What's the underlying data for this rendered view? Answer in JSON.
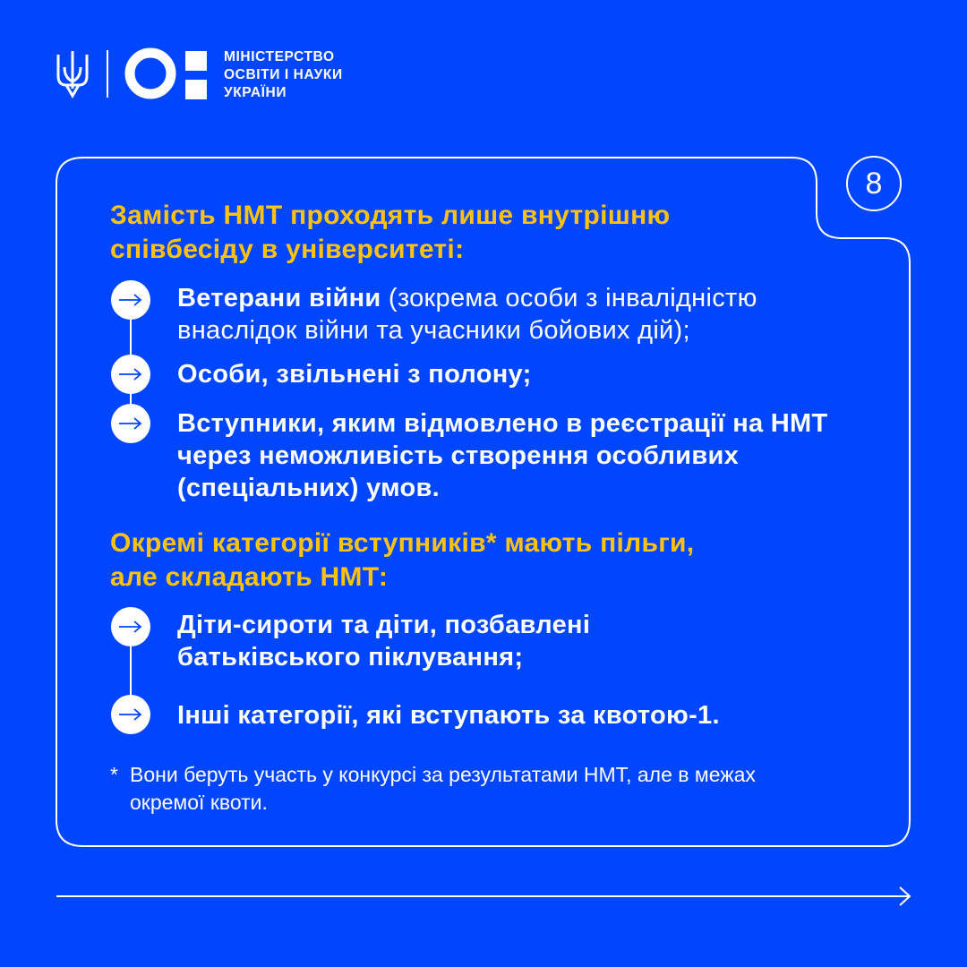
{
  "header": {
    "logo_text": [
      "МІНІСТЕРСТВО",
      "ОСВІТИ І НАУКИ",
      "УКРАЇНИ"
    ],
    "icons": [
      "trident-icon",
      "ministry-logo-icon"
    ]
  },
  "page_number": "8",
  "section1": {
    "heading": [
      "Замість НМТ проходять лише внутрішню",
      "співбесіду в університеті:"
    ],
    "items": [
      {
        "bold": "Ветерани війни",
        "rest": " (зокрема особи з інвалідністю",
        "line2": "внаслідок війни та учасники бойових дій);"
      },
      {
        "bold": "Особи, звільнені з полону;"
      },
      {
        "bold": "Вступники, яким відмовлено в реєстрації на НМТ",
        "line2": "через неможливість створення особливих",
        "line3": "(спеціальних) умов."
      }
    ]
  },
  "section2": {
    "heading": [
      "Окремі категорії вступників* мають пільги,",
      "але складають НМТ:"
    ],
    "items": [
      {
        "bold": "Діти-сироти та діти, позбавлені",
        "line2": "батьківського піклування;"
      },
      {
        "bold": "Інші категорії, які вступають за квотою-1."
      }
    ]
  },
  "footnote": {
    "marker": "*",
    "lines": [
      "Вони беруть участь у конкурсі за результатами НМТ, але в межах",
      "окремої квоти."
    ]
  },
  "colors": {
    "background": "#0046FF",
    "accent": "#FFC20E",
    "text": "#FFFFFF"
  }
}
